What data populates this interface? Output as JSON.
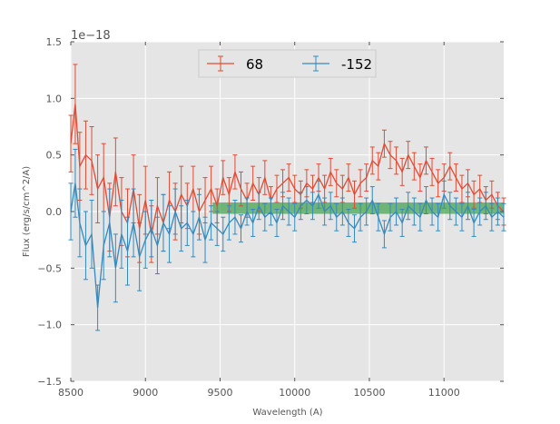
{
  "chart_data": {
    "type": "line",
    "title": "",
    "xlabel": "Wavelength (A)",
    "ylabel": "Flux (erg/s/cm^2/A)",
    "y_offset_label": "1e−18",
    "xlim": [
      8500,
      11400
    ],
    "ylim": [
      -1.5,
      1.5
    ],
    "x_ticks": [
      8500,
      9000,
      9500,
      10000,
      10500,
      11000
    ],
    "x_tick_labels": [
      "8500",
      "9000",
      "9500",
      "10000",
      "10500",
      "11000"
    ],
    "y_ticks": [
      1.5,
      1.0,
      0.5,
      0.0,
      -0.5,
      -1.0,
      -1.5
    ],
    "y_tick_labels": [
      "1.5",
      "1.0",
      "0.5",
      "0.0",
      "−0.5",
      "−1.0",
      "−1.5"
    ],
    "grid": true,
    "legend_position": "top-center",
    "band": {
      "x": [
        9450,
        11400
      ],
      "y": [
        -0.02,
        0.08
      ],
      "color": "#2e9a3a"
    },
    "series": [
      {
        "name": "68",
        "color": "#e24a33",
        "x": [
          8500,
          8530,
          8560,
          8600,
          8640,
          8680,
          8720,
          8760,
          8800,
          8840,
          8880,
          8920,
          8960,
          9000,
          9040,
          9080,
          9120,
          9160,
          9200,
          9240,
          9280,
          9320,
          9360,
          9400,
          9440,
          9480,
          9520,
          9560,
          9600,
          9640,
          9680,
          9720,
          9760,
          9800,
          9840,
          9880,
          9920,
          9960,
          10000,
          10040,
          10080,
          10120,
          10160,
          10200,
          10240,
          10280,
          10320,
          10360,
          10400,
          10440,
          10480,
          10520,
          10560,
          10600,
          10640,
          10680,
          10720,
          10760,
          10800,
          10840,
          10880,
          10920,
          10960,
          11000,
          11040,
          11080,
          11120,
          11160,
          11200,
          11240,
          11280,
          11320,
          11360,
          11400
        ],
        "values": [
          0.6,
          0.95,
          0.4,
          0.5,
          0.45,
          0.2,
          0.3,
          -0.05,
          0.35,
          0.0,
          -0.1,
          0.2,
          -0.15,
          0.1,
          -0.2,
          0.05,
          -0.1,
          0.1,
          0.0,
          0.15,
          0.05,
          0.2,
          0.0,
          0.1,
          0.2,
          0.05,
          0.3,
          0.15,
          0.35,
          0.2,
          0.1,
          0.25,
          0.15,
          0.3,
          0.1,
          0.2,
          0.25,
          0.3,
          0.2,
          0.15,
          0.25,
          0.2,
          0.3,
          0.2,
          0.35,
          0.25,
          0.2,
          0.3,
          0.15,
          0.25,
          0.3,
          0.45,
          0.4,
          0.6,
          0.5,
          0.45,
          0.35,
          0.5,
          0.4,
          0.3,
          0.45,
          0.35,
          0.25,
          0.3,
          0.4,
          0.3,
          0.2,
          0.25,
          0.15,
          0.2,
          0.1,
          0.15,
          0.05,
          0.0
        ],
        "errors": [
          0.25,
          0.35,
          0.3,
          0.3,
          0.3,
          0.3,
          0.3,
          0.3,
          0.3,
          0.3,
          0.3,
          0.3,
          0.3,
          0.3,
          0.25,
          0.25,
          0.25,
          0.25,
          0.25,
          0.25,
          0.2,
          0.2,
          0.2,
          0.2,
          0.2,
          0.15,
          0.15,
          0.15,
          0.15,
          0.15,
          0.15,
          0.15,
          0.15,
          0.15,
          0.12,
          0.12,
          0.12,
          0.12,
          0.12,
          0.12,
          0.12,
          0.12,
          0.12,
          0.12,
          0.12,
          0.12,
          0.12,
          0.12,
          0.12,
          0.12,
          0.12,
          0.12,
          0.12,
          0.12,
          0.12,
          0.12,
          0.12,
          0.12,
          0.12,
          0.12,
          0.12,
          0.12,
          0.12,
          0.12,
          0.12,
          0.12,
          0.12,
          0.12,
          0.12,
          0.12,
          0.12,
          0.12,
          0.12,
          0.12
        ]
      },
      {
        "name": "-152",
        "color": "#348abd",
        "x": [
          8500,
          8530,
          8560,
          8600,
          8640,
          8680,
          8720,
          8760,
          8800,
          8840,
          8880,
          8920,
          8960,
          9000,
          9040,
          9080,
          9120,
          9160,
          9200,
          9240,
          9280,
          9320,
          9360,
          9400,
          9440,
          9480,
          9520,
          9560,
          9600,
          9640,
          9680,
          9720,
          9760,
          9800,
          9840,
          9880,
          9920,
          9960,
          10000,
          10040,
          10080,
          10120,
          10160,
          10200,
          10240,
          10280,
          10320,
          10360,
          10400,
          10440,
          10480,
          10520,
          10560,
          10600,
          10640,
          10680,
          10720,
          10760,
          10800,
          10840,
          10880,
          10920,
          10960,
          11000,
          11040,
          11080,
          11120,
          11160,
          11200,
          11240,
          11280,
          11320,
          11360,
          11400
        ],
        "values": [
          0.0,
          0.25,
          -0.1,
          -0.3,
          -0.2,
          -0.85,
          -0.3,
          -0.1,
          -0.5,
          -0.2,
          -0.35,
          -0.1,
          -0.4,
          -0.25,
          -0.15,
          -0.3,
          -0.1,
          -0.2,
          0.0,
          -0.15,
          -0.1,
          -0.2,
          -0.05,
          -0.25,
          -0.1,
          -0.15,
          -0.2,
          -0.1,
          -0.05,
          -0.15,
          0.0,
          -0.1,
          0.05,
          -0.05,
          0.0,
          -0.1,
          0.05,
          0.0,
          -0.05,
          0.05,
          0.1,
          0.05,
          0.15,
          0.0,
          0.05,
          -0.05,
          0.0,
          -0.1,
          -0.15,
          -0.05,
          0.0,
          0.1,
          -0.05,
          -0.2,
          -0.05,
          0.0,
          -0.1,
          0.05,
          0.0,
          -0.05,
          0.1,
          0.0,
          -0.05,
          0.15,
          0.05,
          0.0,
          -0.05,
          0.05,
          -0.1,
          0.0,
          0.05,
          -0.05,
          0.0,
          -0.05
        ],
        "errors": [
          0.25,
          0.3,
          0.3,
          0.3,
          0.3,
          0.2,
          0.3,
          0.3,
          0.3,
          0.3,
          0.3,
          0.3,
          0.3,
          0.25,
          0.25,
          0.25,
          0.25,
          0.25,
          0.2,
          0.2,
          0.2,
          0.2,
          0.2,
          0.2,
          0.15,
          0.15,
          0.15,
          0.15,
          0.15,
          0.12,
          0.12,
          0.12,
          0.12,
          0.12,
          0.12,
          0.12,
          0.12,
          0.12,
          0.12,
          0.12,
          0.12,
          0.12,
          0.12,
          0.12,
          0.12,
          0.12,
          0.12,
          0.12,
          0.12,
          0.12,
          0.12,
          0.12,
          0.12,
          0.12,
          0.12,
          0.12,
          0.12,
          0.12,
          0.12,
          0.12,
          0.12,
          0.12,
          0.12,
          0.12,
          0.12,
          0.12,
          0.12,
          0.12,
          0.12,
          0.12,
          0.12,
          0.12,
          0.12,
          0.12
        ]
      }
    ]
  }
}
